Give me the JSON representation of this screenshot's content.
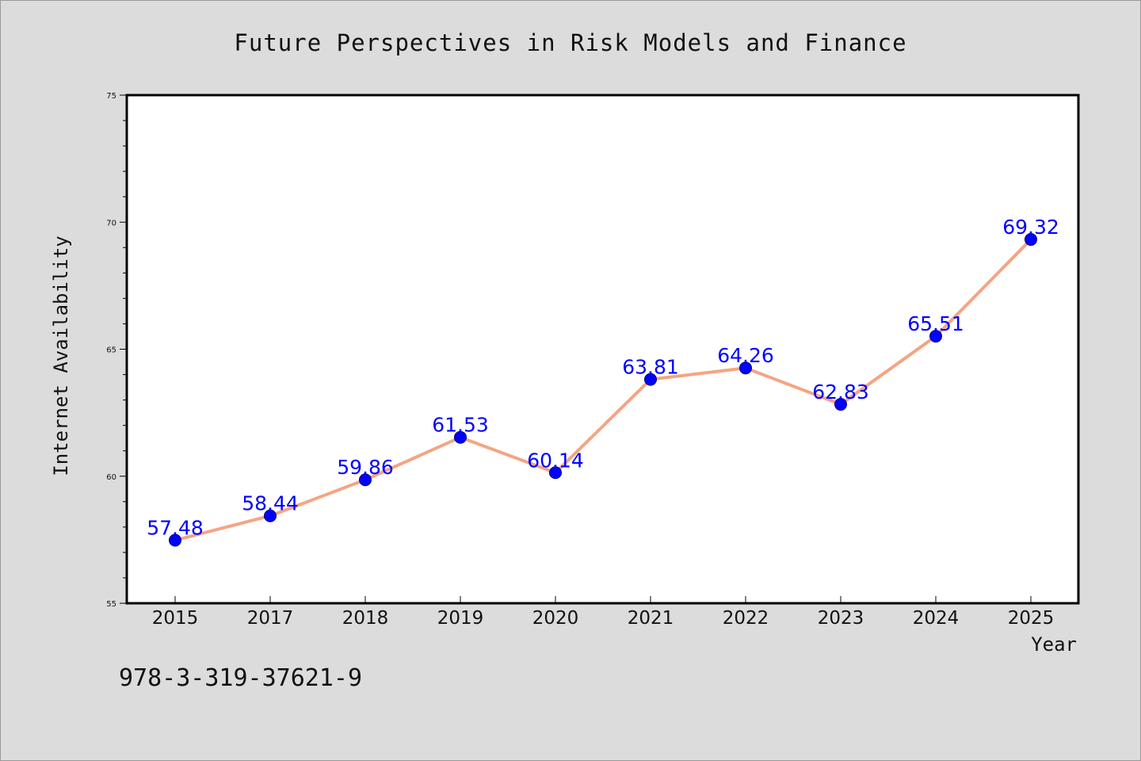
{
  "chart_data": {
    "type": "line",
    "title": "Future Perspectives in Risk Models and Finance",
    "xlabel": "Year",
    "ylabel": "Internet Availability",
    "categories": [
      "2015",
      "2017",
      "2018",
      "2019",
      "2020",
      "2021",
      "2022",
      "2023",
      "2024",
      "2025"
    ],
    "series": [
      {
        "values": [
          57.48,
          58.44,
          59.86,
          61.53,
          60.14,
          63.81,
          64.26,
          62.83,
          65.51,
          69.32
        ],
        "line_color": "#f4a582",
        "marker_color": "#0000ff"
      }
    ],
    "data_labels": [
      "57.48",
      "58.44",
      "59.86",
      "61.53",
      "60.14",
      "63.81",
      "64.26",
      "62.83",
      "65.51",
      "69.32"
    ],
    "ylim": [
      55,
      75
    ],
    "yticks": [
      55,
      60,
      65,
      70,
      75
    ],
    "grid": false,
    "legend": false
  },
  "footnote": "978-3-319-37621-9"
}
